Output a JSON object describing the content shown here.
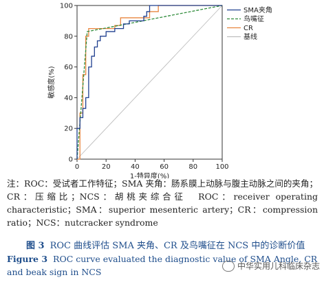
{
  "chart_data": {
    "type": "line",
    "xlabel": "1-特异度(%)",
    "ylabel": "敏感度(%)",
    "xlim": [
      0,
      100
    ],
    "ylim": [
      0,
      100
    ],
    "xticks": [
      "0",
      "20",
      "40",
      "60",
      "80",
      "100"
    ],
    "yticks": [
      "0",
      "20",
      "40",
      "60",
      "80",
      "100"
    ],
    "grid": false,
    "legend_position": "top-right",
    "series": [
      {
        "name": "SMA夹角",
        "color": "#1f3f8f",
        "style": "solid",
        "points": [
          [
            0,
            0
          ],
          [
            0,
            20
          ],
          [
            2,
            20
          ],
          [
            2,
            27
          ],
          [
            4,
            27
          ],
          [
            4,
            33
          ],
          [
            6,
            33
          ],
          [
            6,
            40
          ],
          [
            8,
            40
          ],
          [
            8,
            60
          ],
          [
            10,
            60
          ],
          [
            10,
            67
          ],
          [
            12,
            67
          ],
          [
            12,
            73
          ],
          [
            14,
            73
          ],
          [
            14,
            77
          ],
          [
            16,
            77
          ],
          [
            16,
            80
          ],
          [
            20,
            80
          ],
          [
            20,
            83
          ],
          [
            26,
            83
          ],
          [
            26,
            85
          ],
          [
            32,
            85
          ],
          [
            32,
            88
          ],
          [
            36,
            88
          ],
          [
            36,
            90
          ],
          [
            46,
            90
          ],
          [
            46,
            93
          ],
          [
            48,
            93
          ],
          [
            48,
            96
          ],
          [
            50,
            96
          ],
          [
            50,
            100
          ],
          [
            100,
            100
          ]
        ]
      },
      {
        "name": "鸟嘴征",
        "color": "#2e8b3a",
        "style": "dashed",
        "points": [
          [
            0,
            0
          ],
          [
            7,
            83
          ],
          [
            100,
            100
          ]
        ]
      },
      {
        "name": "CR",
        "color": "#e8853d",
        "style": "solid",
        "points": [
          [
            0,
            0
          ],
          [
            2,
            0
          ],
          [
            2,
            30
          ],
          [
            4,
            30
          ],
          [
            4,
            55
          ],
          [
            6,
            55
          ],
          [
            6,
            80
          ],
          [
            8,
            80
          ],
          [
            8,
            85
          ],
          [
            26,
            85
          ],
          [
            26,
            87
          ],
          [
            30,
            87
          ],
          [
            30,
            92
          ],
          [
            50,
            92
          ],
          [
            50,
            96
          ],
          [
            56,
            96
          ],
          [
            56,
            100
          ],
          [
            100,
            100
          ]
        ]
      },
      {
        "name": "基线",
        "color": "#bdbdbd",
        "style": "solid",
        "points": [
          [
            0,
            0
          ],
          [
            100,
            100
          ]
        ]
      }
    ]
  },
  "note": "注：ROC：受试者工作特征；SMA 夹角：肠系膜上动脉与腹主动脉之间的夹角；CR：压缩比；NCS：胡桃夹综合征　ROC：receiver operating characteristic；SMA：superior mesenteric artery；CR：compression ratio；NCS：nutcracker syndrome",
  "caption_cn": {
    "label": "图 3",
    "text": "ROC 曲线评估 SMA 夹角、CR 及鸟嘴征在 NCS 中的诊断价值"
  },
  "caption_en": {
    "label": "Figure 3",
    "text": "ROC curve evaluated the diagnostic value of SMA Angle, CR and beak sign in NCS"
  },
  "watermark": "中华实用儿科临床杂志"
}
